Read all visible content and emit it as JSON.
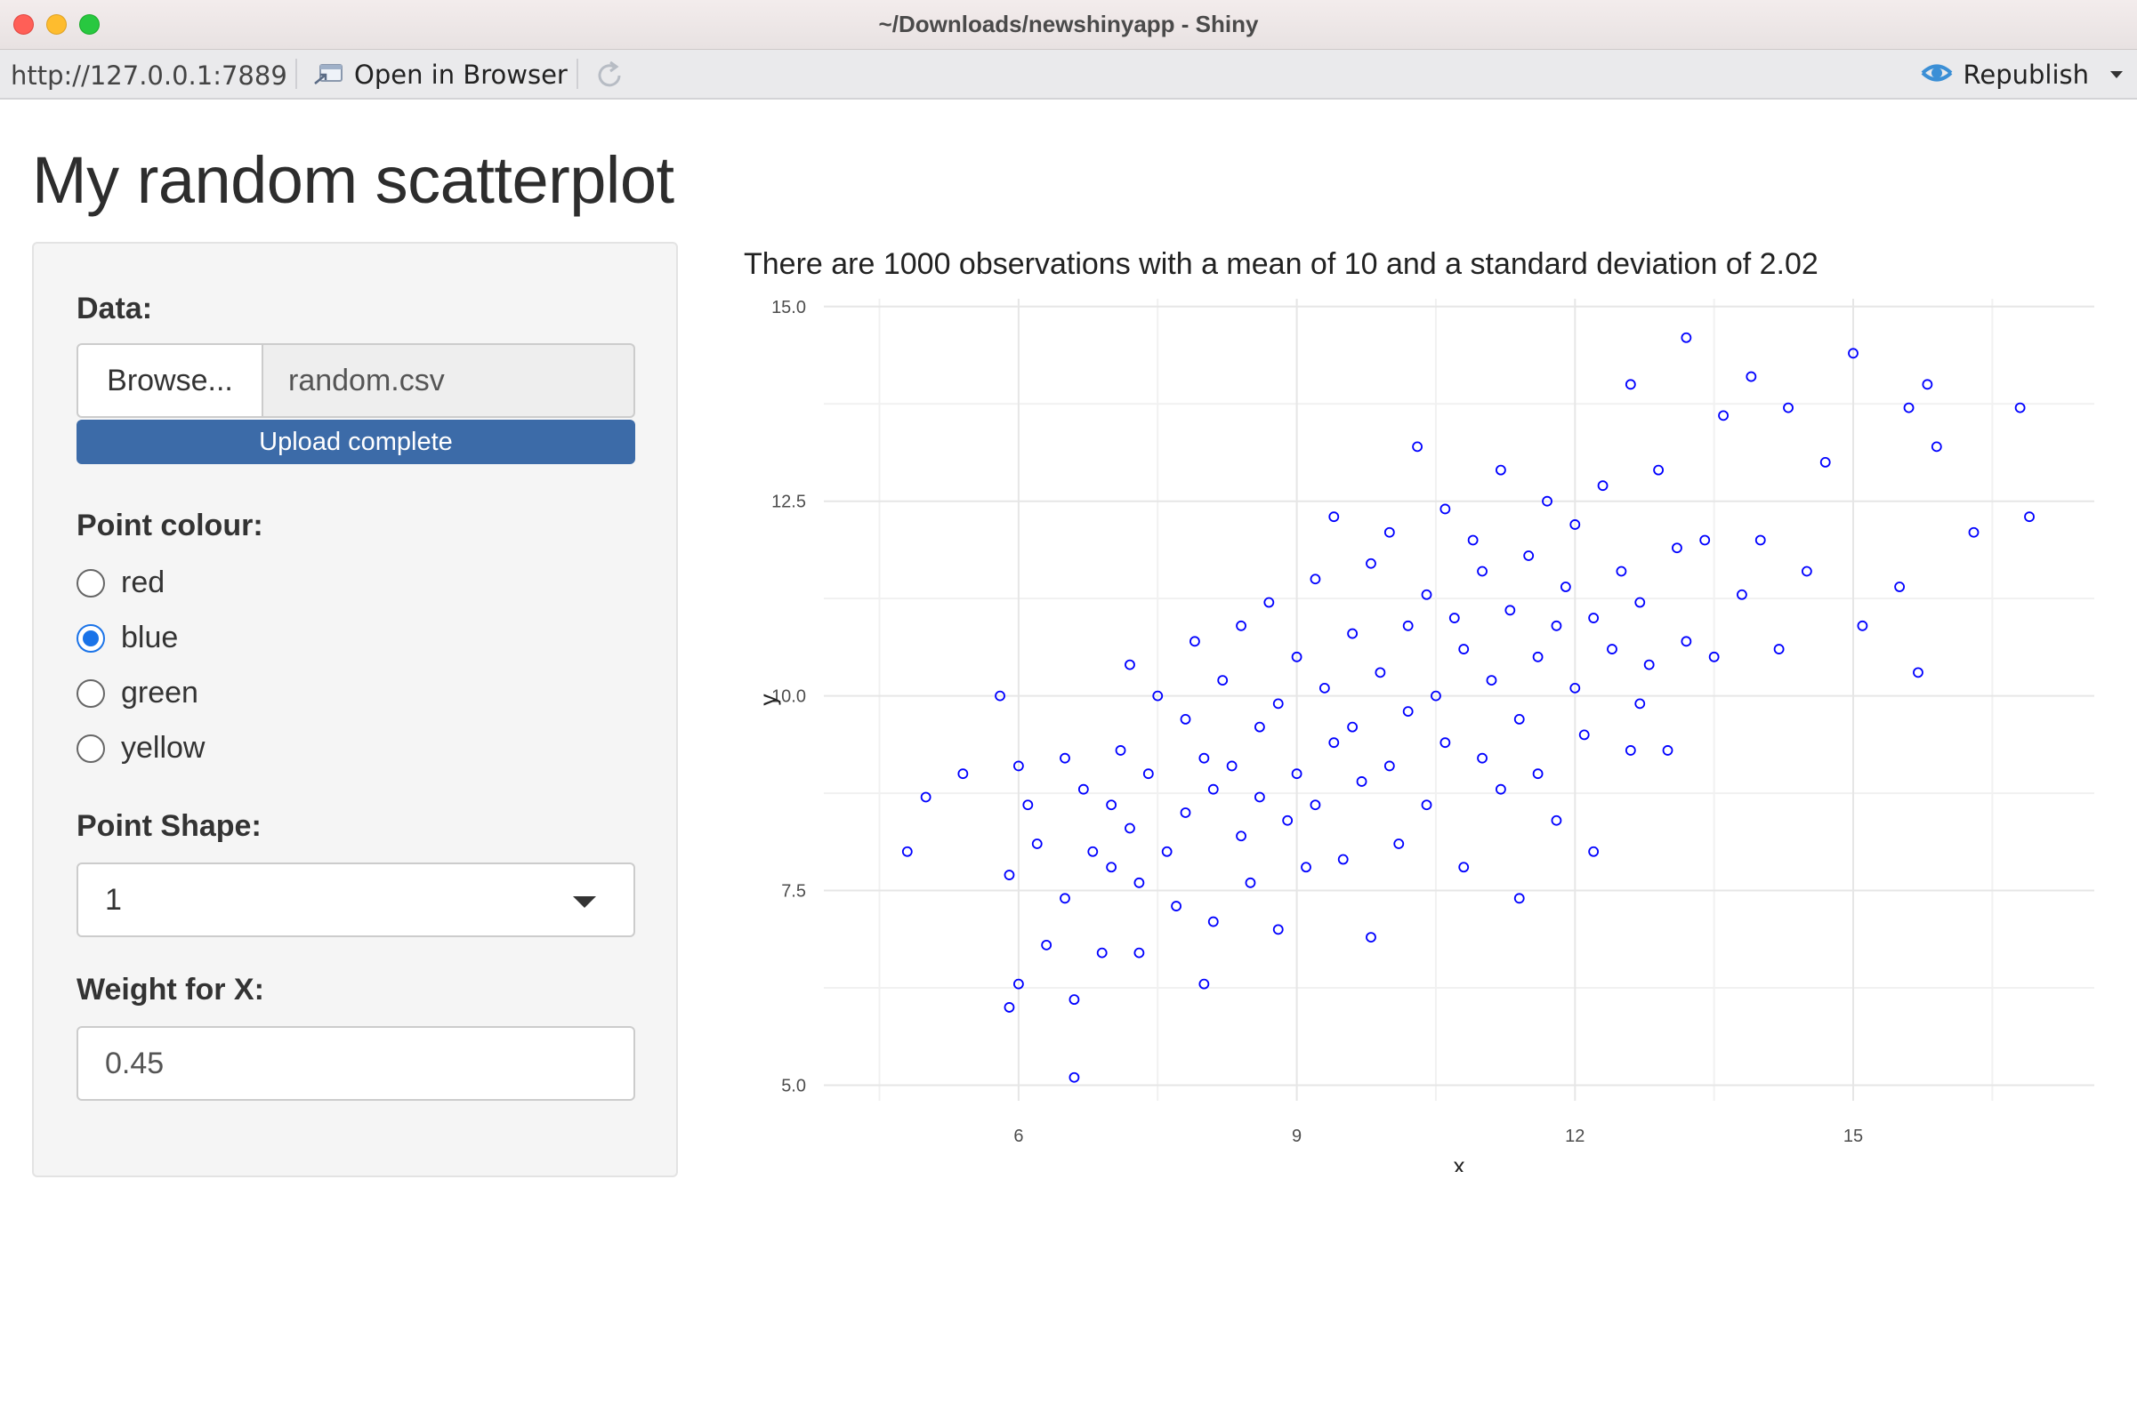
{
  "window": {
    "title": "~/Downloads/newshinyapp - Shiny"
  },
  "toolbar": {
    "url": "http://127.0.0.1:7889",
    "open_in_browser": "Open in Browser",
    "republish": "Republish"
  },
  "app": {
    "title": "My random scatterplot",
    "data_label": "Data:",
    "browse_label": "Browse...",
    "file_name": "random.csv",
    "upload_status": "Upload complete",
    "upload_progress": 1.0,
    "point_colour_label": "Point colour:",
    "colour_options": [
      {
        "label": "red",
        "checked": false
      },
      {
        "label": "blue",
        "checked": true
      },
      {
        "label": "green",
        "checked": false
      },
      {
        "label": "yellow",
        "checked": false
      }
    ],
    "point_shape_label": "Point Shape:",
    "point_shape_value": "1",
    "weight_label": "Weight for X:",
    "weight_value": "0.45",
    "summary": "There are 1000 observations with a mean of 10 and a standard deviation of 2.02"
  },
  "colors": {
    "point": "#0000ff",
    "accent": "#1a73e8",
    "progress": "#3c6ba8"
  },
  "chart_data": {
    "type": "scatter",
    "title": "",
    "xlabel": "x",
    "ylabel": "y",
    "xlim": [
      3.9,
      17.6
    ],
    "ylim": [
      4.8,
      15.1
    ],
    "xticks": [
      6,
      9,
      12,
      15
    ],
    "yticks": [
      5.0,
      7.5,
      10.0,
      12.5,
      15.0
    ],
    "ytick_labels": [
      "5.0",
      "7.5",
      "10.0",
      "12.5",
      "15.0"
    ],
    "grid": true,
    "marker": "open-circle",
    "n": 1000,
    "points": [
      [
        4.8,
        8.0
      ],
      [
        5.0,
        8.7
      ],
      [
        5.4,
        9.0
      ],
      [
        5.8,
        10.0
      ],
      [
        5.9,
        7.7
      ],
      [
        6.0,
        9.1
      ],
      [
        6.1,
        8.6
      ],
      [
        6.2,
        8.1
      ],
      [
        6.0,
        6.3
      ],
      [
        5.9,
        6.0
      ],
      [
        6.3,
        6.8
      ],
      [
        6.5,
        7.4
      ],
      [
        6.5,
        9.2
      ],
      [
        6.6,
        6.1
      ],
      [
        6.6,
        5.1
      ],
      [
        6.7,
        8.8
      ],
      [
        6.8,
        8.0
      ],
      [
        6.9,
        6.7
      ],
      [
        7.0,
        8.6
      ],
      [
        7.0,
        7.8
      ],
      [
        7.1,
        9.3
      ],
      [
        7.2,
        10.4
      ],
      [
        7.2,
        8.3
      ],
      [
        7.3,
        7.6
      ],
      [
        7.3,
        6.7
      ],
      [
        7.4,
        9.0
      ],
      [
        7.5,
        10.0
      ],
      [
        7.6,
        8.0
      ],
      [
        7.7,
        7.3
      ],
      [
        7.8,
        9.7
      ],
      [
        7.8,
        8.5
      ],
      [
        7.9,
        10.7
      ],
      [
        8.0,
        9.2
      ],
      [
        8.0,
        6.3
      ],
      [
        8.1,
        8.8
      ],
      [
        8.1,
        7.1
      ],
      [
        8.2,
        10.2
      ],
      [
        8.3,
        9.1
      ],
      [
        8.4,
        8.2
      ],
      [
        8.4,
        10.9
      ],
      [
        8.5,
        7.6
      ],
      [
        8.6,
        9.6
      ],
      [
        8.6,
        8.7
      ],
      [
        8.7,
        11.2
      ],
      [
        8.8,
        7.0
      ],
      [
        8.8,
        9.9
      ],
      [
        8.9,
        8.4
      ],
      [
        9.0,
        10.5
      ],
      [
        9.0,
        9.0
      ],
      [
        9.1,
        7.8
      ],
      [
        9.2,
        11.5
      ],
      [
        9.2,
        8.6
      ],
      [
        9.3,
        10.1
      ],
      [
        9.4,
        9.4
      ],
      [
        9.4,
        12.3
      ],
      [
        9.5,
        7.9
      ],
      [
        9.6,
        10.8
      ],
      [
        9.6,
        9.6
      ],
      [
        9.7,
        8.9
      ],
      [
        9.8,
        11.7
      ],
      [
        9.8,
        6.9
      ],
      [
        9.9,
        10.3
      ],
      [
        10.0,
        9.1
      ],
      [
        10.0,
        12.1
      ],
      [
        10.1,
        8.1
      ],
      [
        10.2,
        10.9
      ],
      [
        10.2,
        9.8
      ],
      [
        10.3,
        13.2
      ],
      [
        10.4,
        11.3
      ],
      [
        10.4,
        8.6
      ],
      [
        10.5,
        10.0
      ],
      [
        10.6,
        12.4
      ],
      [
        10.6,
        9.4
      ],
      [
        10.7,
        11.0
      ],
      [
        10.8,
        7.8
      ],
      [
        10.8,
        10.6
      ],
      [
        10.9,
        12.0
      ],
      [
        11.0,
        9.2
      ],
      [
        11.0,
        11.6
      ],
      [
        11.1,
        10.2
      ],
      [
        11.2,
        8.8
      ],
      [
        11.2,
        12.9
      ],
      [
        11.3,
        11.1
      ],
      [
        11.4,
        9.7
      ],
      [
        11.4,
        7.4
      ],
      [
        11.5,
        11.8
      ],
      [
        11.6,
        10.5
      ],
      [
        11.6,
        9.0
      ],
      [
        11.7,
        12.5
      ],
      [
        11.8,
        10.9
      ],
      [
        11.8,
        8.4
      ],
      [
        11.9,
        11.4
      ],
      [
        12.0,
        10.1
      ],
      [
        12.0,
        12.2
      ],
      [
        12.1,
        9.5
      ],
      [
        12.2,
        11.0
      ],
      [
        12.2,
        8.0
      ],
      [
        12.3,
        12.7
      ],
      [
        12.4,
        10.6
      ],
      [
        12.5,
        11.6
      ],
      [
        12.6,
        9.3
      ],
      [
        12.6,
        14.0
      ],
      [
        12.7,
        11.2
      ],
      [
        12.8,
        10.4
      ],
      [
        12.9,
        12.9
      ],
      [
        13.0,
        9.3
      ],
      [
        13.1,
        11.9
      ],
      [
        13.2,
        10.7
      ],
      [
        13.2,
        14.6
      ],
      [
        13.4,
        12.0
      ],
      [
        13.5,
        10.5
      ],
      [
        13.6,
        13.6
      ],
      [
        13.8,
        11.3
      ],
      [
        13.9,
        14.1
      ],
      [
        14.0,
        12.0
      ],
      [
        14.2,
        10.6
      ],
      [
        14.3,
        13.7
      ],
      [
        14.5,
        11.6
      ],
      [
        14.7,
        13.0
      ],
      [
        15.0,
        14.4
      ],
      [
        15.1,
        10.9
      ],
      [
        15.5,
        11.4
      ],
      [
        15.6,
        13.7
      ],
      [
        15.7,
        10.3
      ],
      [
        15.8,
        14.0
      ],
      [
        15.9,
        13.2
      ],
      [
        16.3,
        12.1
      ],
      [
        16.8,
        13.7
      ],
      [
        16.9,
        12.3
      ],
      [
        12.7,
        9.9
      ]
    ]
  }
}
